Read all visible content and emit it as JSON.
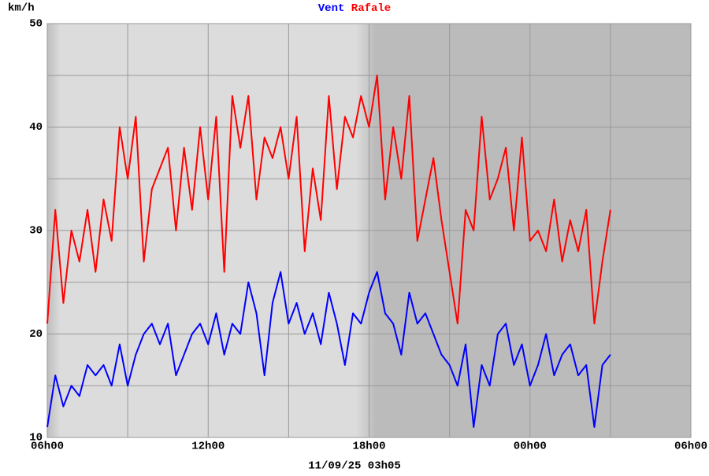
{
  "chart_data": {
    "type": "line",
    "ylabel": "km/h",
    "xlabel": "11/09/25 03h05",
    "x": [
      0,
      0.3,
      0.6,
      0.9,
      1.2,
      1.5,
      1.8,
      2.1,
      2.4,
      2.7,
      3.0,
      3.3,
      3.6,
      3.9,
      4.2,
      4.5,
      4.8,
      5.1,
      5.4,
      5.7,
      6.0,
      6.3,
      6.6,
      6.9,
      7.2,
      7.5,
      7.8,
      8.1,
      8.4,
      8.7,
      9.0,
      9.3,
      9.6,
      9.9,
      10.2,
      10.5,
      10.8,
      11.1,
      11.4,
      11.7,
      12.0,
      12.3,
      12.6,
      12.9,
      13.2,
      13.5,
      13.8,
      14.1,
      14.4,
      14.7,
      15.0,
      15.3,
      15.6,
      15.9,
      16.2,
      16.5,
      16.8,
      17.1,
      17.4,
      17.7,
      18.0,
      18.3,
      18.6,
      18.9,
      19.2,
      19.5,
      19.8,
      20.1,
      20.4,
      20.7,
      21.0
    ],
    "series": [
      {
        "name": "Vent",
        "color": "#0000ff",
        "values": [
          11,
          16,
          13,
          15,
          14,
          17,
          16,
          17,
          15,
          19,
          15,
          18,
          20,
          21,
          19,
          21,
          16,
          18,
          20,
          21,
          19,
          22,
          18,
          21,
          20,
          25,
          22,
          16,
          23,
          26,
          21,
          23,
          20,
          22,
          19,
          24,
          21,
          17,
          22,
          21,
          24,
          26,
          22,
          21,
          18,
          24,
          21,
          22,
          20,
          18,
          17,
          15,
          19,
          11,
          17,
          15,
          20,
          21,
          17,
          19,
          15,
          17,
          20,
          16,
          18,
          19,
          16,
          17,
          11,
          17,
          18
        ]
      },
      {
        "name": "Rafale",
        "color": "#ff0000",
        "values": [
          21,
          32,
          23,
          30,
          27,
          32,
          26,
          33,
          29,
          40,
          35,
          41,
          27,
          34,
          36,
          38,
          30,
          38,
          32,
          40,
          33,
          41,
          26,
          43,
          38,
          43,
          33,
          39,
          37,
          40,
          35,
          41,
          28,
          36,
          31,
          43,
          34,
          41,
          39,
          43,
          40,
          45,
          33,
          40,
          35,
          43,
          29,
          33,
          37,
          31,
          26,
          21,
          32,
          30,
          41,
          33,
          35,
          38,
          30,
          39,
          29,
          30,
          28,
          33,
          27,
          31,
          28,
          32,
          21,
          27,
          32
        ]
      }
    ],
    "xlim": [
      0,
      24
    ],
    "xticks": [
      {
        "value": 0,
        "label": "06h00"
      },
      {
        "value": 6,
        "label": "12h00"
      },
      {
        "value": 12,
        "label": "18h00"
      },
      {
        "value": 18,
        "label": "00h00"
      },
      {
        "value": 24,
        "label": "06h00"
      }
    ],
    "minor_xticks": [
      3,
      9,
      15,
      21
    ],
    "ylim": [
      10,
      50
    ],
    "yticks": [
      10,
      20,
      30,
      40,
      50
    ],
    "minor_yticks": [
      15,
      25,
      35,
      45
    ],
    "grid": true
  }
}
